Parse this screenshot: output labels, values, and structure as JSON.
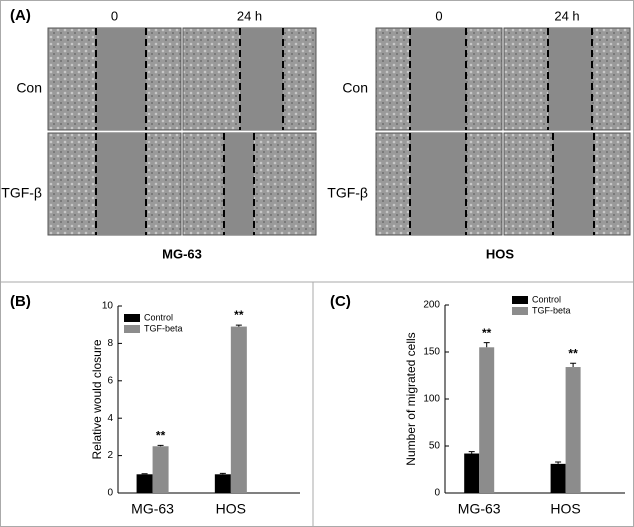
{
  "panel_a": {
    "label": "(A)",
    "groups": [
      {
        "name": "MG-63",
        "columns": [
          "0",
          "24 h"
        ],
        "rows": [
          "Con",
          "TGF-β"
        ]
      },
      {
        "name": "HOS",
        "columns": [
          "0",
          "24 h"
        ],
        "rows": [
          "Con",
          "TGF-β"
        ]
      }
    ]
  },
  "chart_data": [
    {
      "type": "bar",
      "panel_label": "(B)",
      "ylabel": "Relative would closure",
      "categories": [
        "MG-63",
        "HOS"
      ],
      "series": [
        {
          "name": "Control",
          "color": "#000000",
          "values": [
            1.0,
            1.0
          ],
          "errors": [
            0.03,
            0.05
          ]
        },
        {
          "name": "TGF-beta",
          "color": "#8c8c8c",
          "values": [
            2.5,
            8.9
          ],
          "errors": [
            0.05,
            0.08
          ]
        }
      ],
      "annotations": [
        "**",
        "**"
      ],
      "ylim": [
        0,
        10
      ],
      "yticks": [
        0,
        2,
        4,
        6,
        8,
        10
      ],
      "legend": "top-left"
    },
    {
      "type": "bar",
      "panel_label": "(C)",
      "ylabel": "Number of migrated cells",
      "categories": [
        "MG-63",
        "HOS"
      ],
      "series": [
        {
          "name": "Control",
          "color": "#000000",
          "values": [
            42,
            31
          ],
          "errors": [
            2,
            2
          ]
        },
        {
          "name": "TGF-beta",
          "color": "#8c8c8c",
          "values": [
            155,
            134
          ],
          "errors": [
            5,
            4
          ]
        }
      ],
      "annotations": [
        "**",
        "**"
      ],
      "ylim": [
        0,
        200
      ],
      "yticks": [
        0,
        50,
        100,
        150,
        200
      ],
      "legend": "top-center"
    }
  ]
}
